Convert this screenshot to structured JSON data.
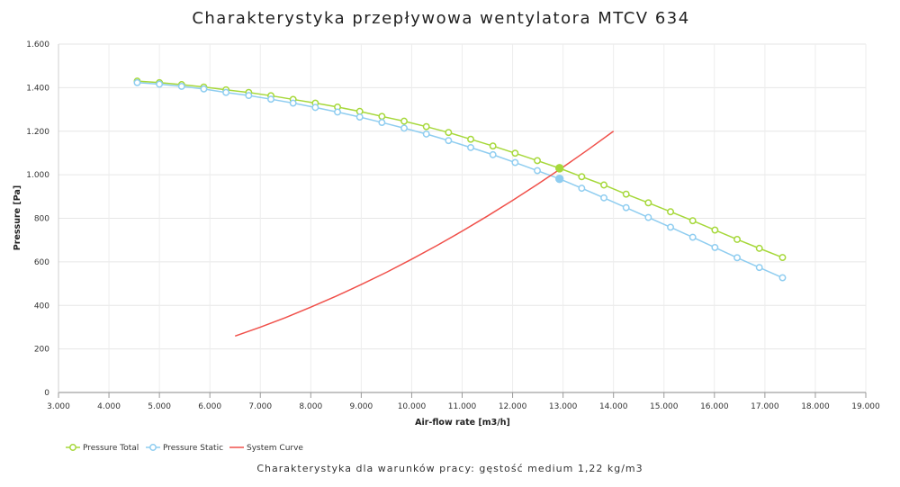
{
  "chart_data": {
    "type": "line",
    "title": "Charakterystyka przepływowa wentylatora MTCV 634",
    "subtitle": "Charakterystyka dla warunków pracy: gęstość medium 1,22 kg/m3",
    "xlabel": "Air-flow rate [m3/h]",
    "ylabel": "Pressure [Pa]",
    "xlim": [
      3000,
      19000
    ],
    "ylim": [
      0,
      1600
    ],
    "xticks": [
      3000,
      4000,
      5000,
      6000,
      7000,
      8000,
      9000,
      10000,
      11000,
      12000,
      13000,
      14000,
      15000,
      16000,
      17000,
      18000,
      19000
    ],
    "xtick_labels": [
      "3.000",
      "4.000",
      "5.000",
      "6.000",
      "7.000",
      "8.000",
      "9.000",
      "10.000",
      "11.000",
      "12.000",
      "13.000",
      "14.000",
      "15.000",
      "16.000",
      "17.000",
      "18.000",
      "19.000"
    ],
    "yticks": [
      0,
      200,
      400,
      600,
      800,
      1000,
      1200,
      1400,
      1600
    ],
    "ytick_labels": [
      "0",
      "200",
      "400",
      "600",
      "800",
      "1.000",
      "1.200",
      "1.400",
      "1.600"
    ],
    "grid": true,
    "legend_position": "bottom-left",
    "series": [
      {
        "name": "Pressure Total",
        "color": "#a6d83a",
        "marker": "circle-open",
        "x": [
          4560,
          5000,
          5440,
          5880,
          6320,
          6770,
          7210,
          7650,
          8090,
          8530,
          8970,
          9410,
          9850,
          10290,
          10730,
          11170,
          11610,
          12050,
          12490,
          12930,
          13370,
          13810,
          14250,
          14690,
          15130,
          15570,
          16010,
          16450,
          16890,
          17350
        ],
        "y": [
          1430,
          1423,
          1414,
          1403,
          1390,
          1378,
          1363,
          1346,
          1329,
          1311,
          1291,
          1268,
          1246,
          1221,
          1194,
          1163,
          1132,
          1099,
          1065,
          1030,
          991,
          953,
          911,
          871,
          830,
          789,
          746,
          703,
          662,
          620
        ]
      },
      {
        "name": "Pressure Static",
        "color": "#8fcdf0",
        "marker": "circle-open",
        "x": [
          4560,
          5000,
          5440,
          5880,
          6320,
          6770,
          7210,
          7650,
          8090,
          8530,
          8970,
          9410,
          9850,
          10290,
          10730,
          11170,
          11610,
          12050,
          12490,
          12930,
          13370,
          13810,
          14250,
          14690,
          15130,
          15570,
          16010,
          16450,
          16890,
          17350
        ],
        "y": [
          1423,
          1416,
          1406,
          1394,
          1378,
          1364,
          1347,
          1329,
          1309,
          1288,
          1265,
          1240,
          1214,
          1187,
          1157,
          1125,
          1092,
          1056,
          1019,
          981,
          938,
          894,
          849,
          804,
          759,
          713,
          666,
          619,
          574,
          527
        ]
      },
      {
        "name": "System Curve",
        "color": "#f0504a",
        "marker": "none",
        "x": [
          6500,
          7000,
          7500,
          8000,
          8500,
          9000,
          9500,
          10000,
          10500,
          11000,
          11500,
          12000,
          12500,
          13000,
          13500,
          14000
        ],
        "y": [
          259,
          300,
          344,
          392,
          442,
          496,
          552,
          612,
          675,
          741,
          810,
          882,
          957,
          1035,
          1116,
          1200
        ]
      }
    ],
    "operating_points": [
      {
        "series": "Pressure Total",
        "x": 12930,
        "y": 1030,
        "color": "#a6d83a"
      },
      {
        "series": "Pressure Static",
        "x": 12930,
        "y": 981,
        "color": "#8fcdf0"
      }
    ]
  }
}
